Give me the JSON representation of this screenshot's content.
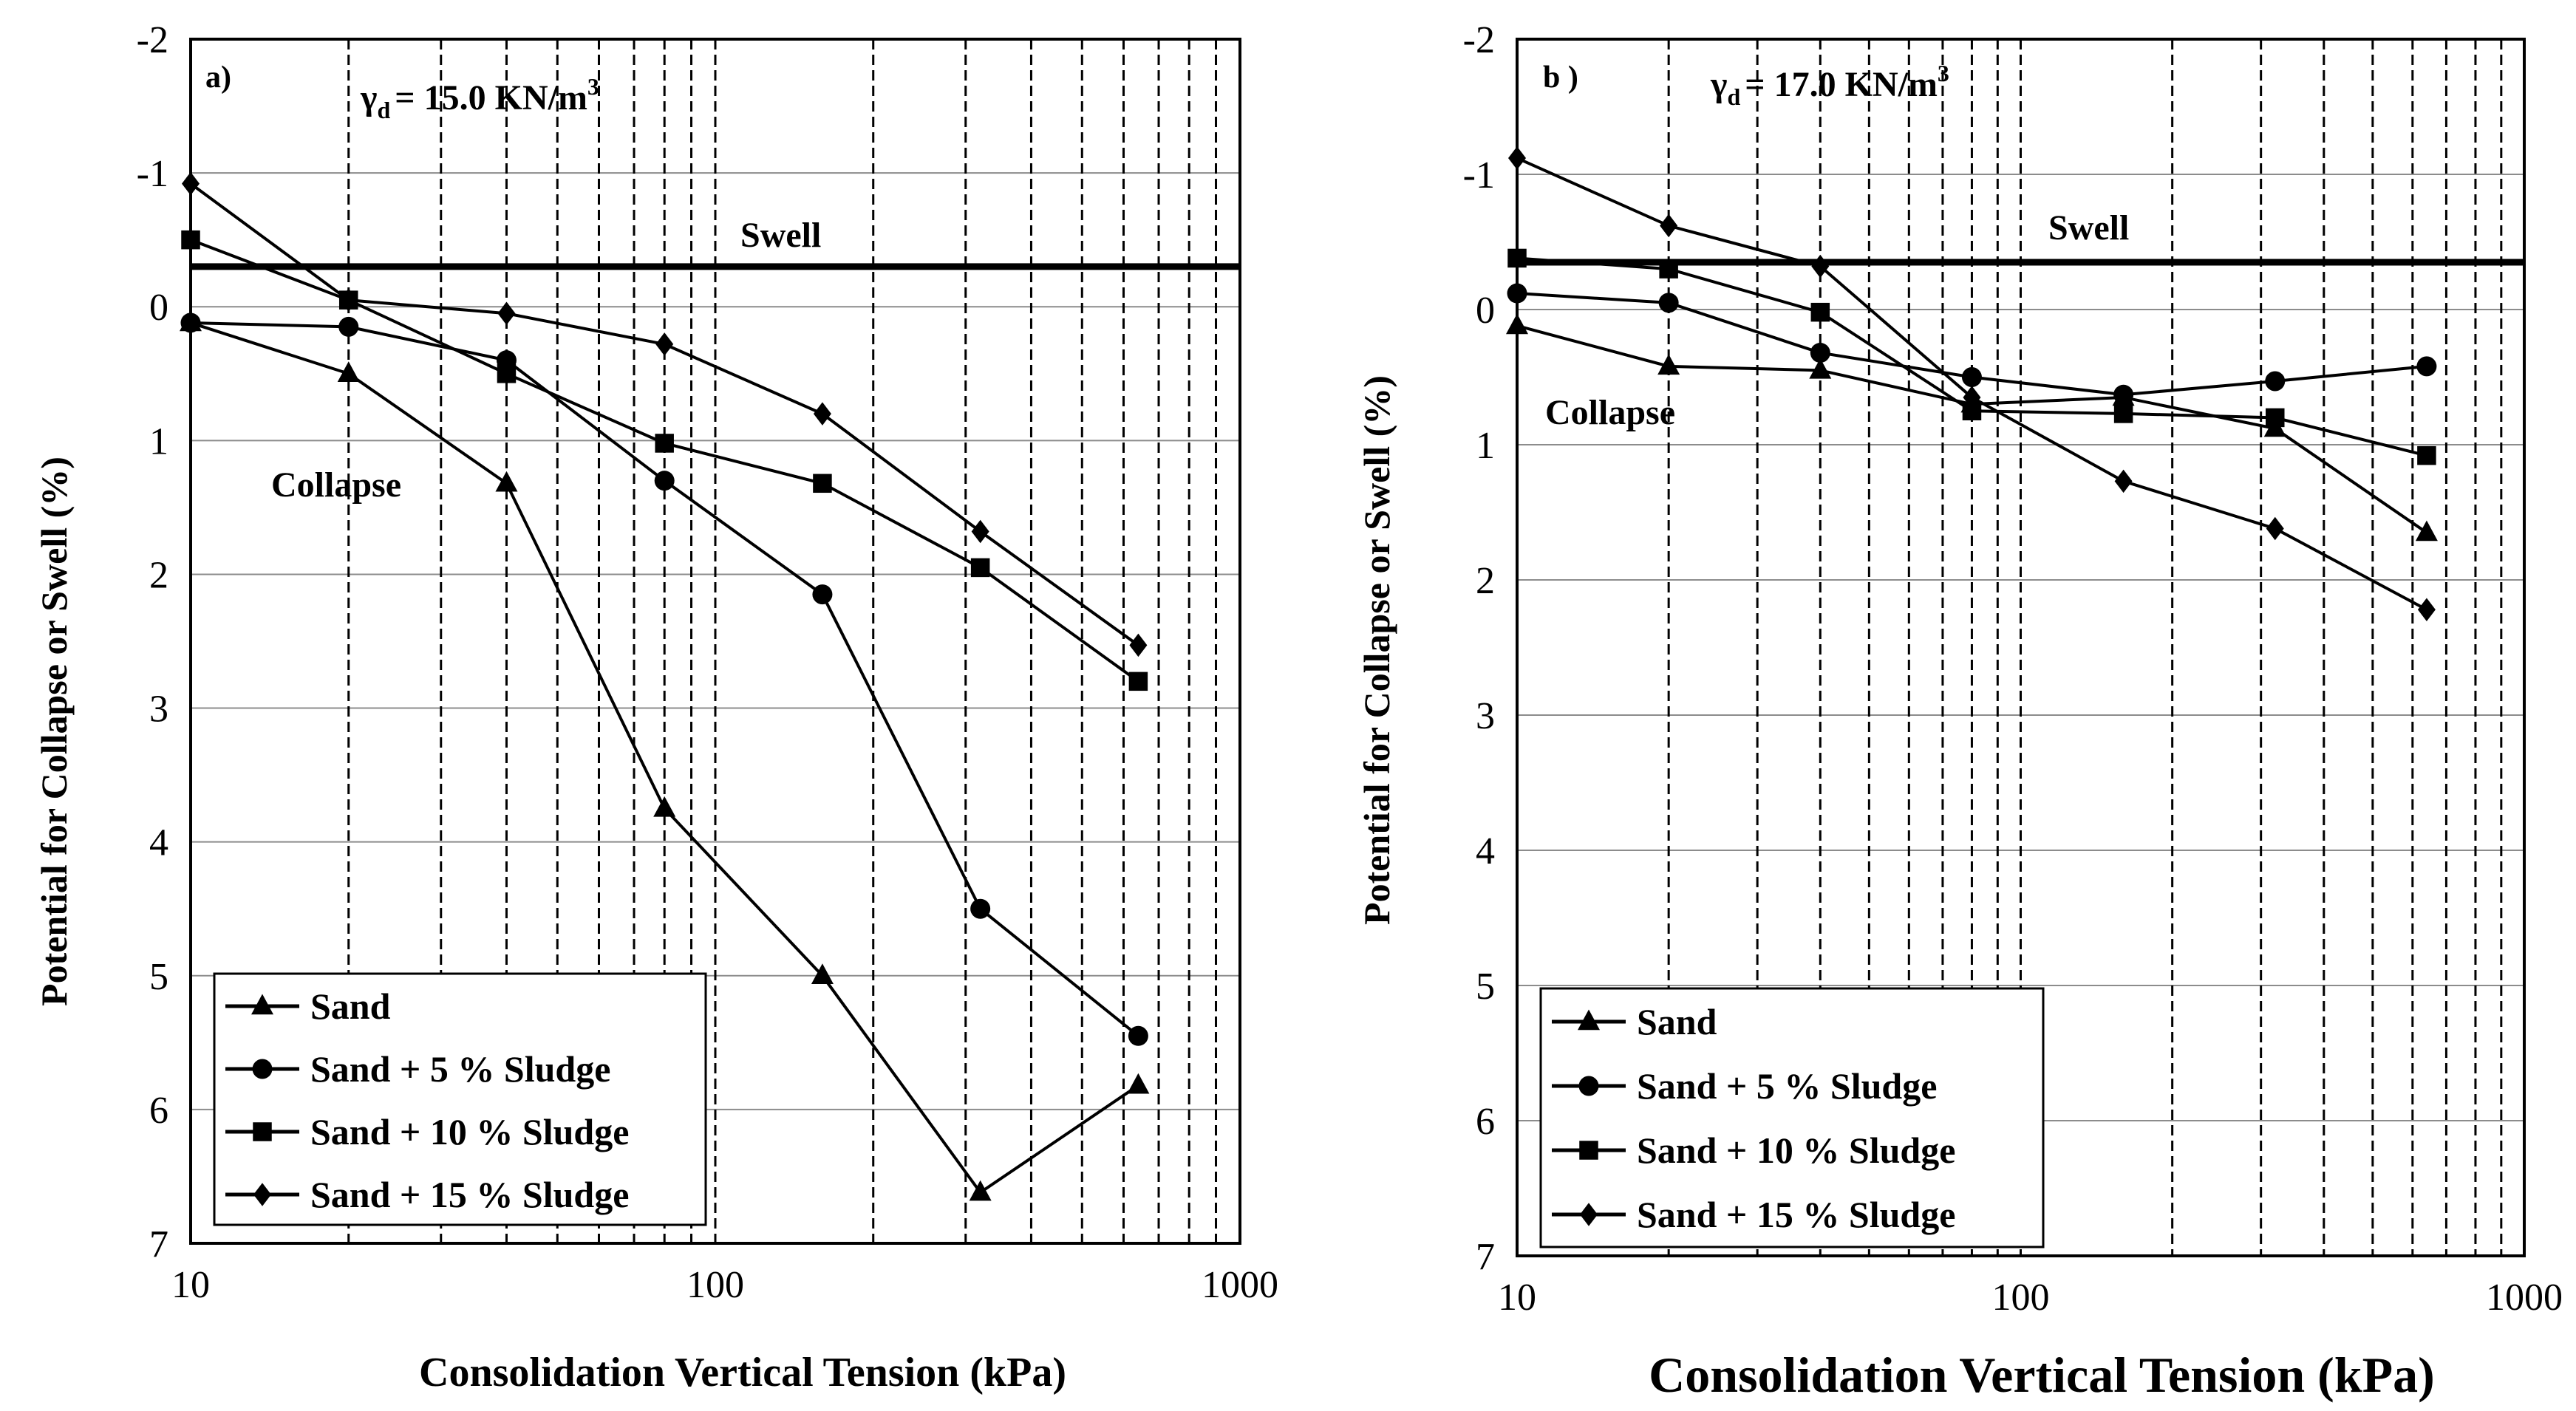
{
  "chart_data": [
    {
      "type": "line",
      "panel_label": "a)",
      "title_symbol": "γ",
      "title_subscript": "d",
      "title_value": "= 15.0 KN/m",
      "title_superscript": "3",
      "xlabel": "Consolidation Vertical Tension (kPa)",
      "ylabel": "Potential for Collapse or Swell (%)",
      "xscale": "log",
      "xlim": [
        10,
        1000
      ],
      "ylim": [
        -2,
        7
      ],
      "y_inverted": true,
      "x_ticks": [
        "10",
        "100",
        "1000"
      ],
      "y_ticks": [
        "-2",
        "-1",
        "0",
        "1",
        "2",
        "3",
        "4",
        "5",
        "6",
        "7"
      ],
      "swell_label": "Swell",
      "swell_level": -0.3,
      "collapse_label": "Collapse",
      "legend_position": "bottom-left",
      "series": [
        {
          "name": "Sand",
          "marker": "triangle",
          "x": [
            10,
            20,
            40,
            80,
            160,
            320,
            640
          ],
          "values": [
            0.12,
            0.5,
            1.32,
            3.75,
            5.0,
            6.62,
            5.82
          ]
        },
        {
          "name": "Sand +  5 %  Sludge",
          "marker": "circle",
          "x": [
            10,
            20,
            40,
            80,
            160,
            320,
            640
          ],
          "values": [
            0.12,
            0.15,
            0.4,
            1.3,
            2.15,
            4.5,
            5.45
          ]
        },
        {
          "name": "Sand + 10 % Sludge",
          "marker": "square",
          "x": [
            10,
            20,
            40,
            80,
            160,
            320,
            640
          ],
          "values": [
            -0.5,
            -0.05,
            0.5,
            1.02,
            1.32,
            1.95,
            2.8
          ]
        },
        {
          "name": "Sand + 15 % Sludge",
          "marker": "diamond",
          "x": [
            10,
            20,
            40,
            80,
            160,
            320,
            640
          ],
          "values": [
            -0.92,
            -0.05,
            0.05,
            0.28,
            0.8,
            1.68,
            2.53
          ]
        }
      ]
    },
    {
      "type": "line",
      "panel_label": "b )",
      "title_symbol": "γ",
      "title_subscript": "d",
      "title_value": "= 17.0 KN/m",
      "title_superscript": "3",
      "xlabel": "Consolidation Vertical Tension (kPa)",
      "ylabel": "Potential for Collapse or Swell (%)",
      "xscale": "log",
      "xlim": [
        10,
        1000
      ],
      "ylim": [
        -2,
        7
      ],
      "y_inverted": true,
      "x_ticks": [
        "10",
        "100",
        "1000"
      ],
      "y_ticks": [
        "-2",
        "-1",
        "0",
        "1",
        "2",
        "3",
        "4",
        "5",
        "6",
        "7"
      ],
      "swell_label": "Swell",
      "swell_level": -0.35,
      "collapse_label": "Collapse",
      "legend_position": "bottom-left",
      "series": [
        {
          "name": "Sand",
          "marker": "triangle",
          "x": [
            10,
            20,
            40,
            80,
            160,
            320,
            640
          ],
          "values": [
            0.12,
            0.42,
            0.45,
            0.7,
            0.65,
            0.88,
            1.65
          ]
        },
        {
          "name": "Sand +  5 % Sludge",
          "marker": "circle",
          "x": [
            10,
            20,
            40,
            80,
            160,
            320,
            640
          ],
          "values": [
            -0.12,
            -0.05,
            0.32,
            0.5,
            0.63,
            0.53,
            0.42
          ]
        },
        {
          "name": "Sand + 10 % Sludge",
          "marker": "square",
          "x": [
            10,
            20,
            40,
            80,
            160,
            320,
            640
          ],
          "values": [
            -0.38,
            -0.3,
            0.02,
            0.75,
            0.77,
            0.8,
            1.08
          ]
        },
        {
          "name": "Sand + 15 % Sludge",
          "marker": "diamond",
          "x": [
            10,
            20,
            40,
            80,
            160,
            320,
            640
          ],
          "values": [
            -1.12,
            -0.62,
            -0.32,
            0.65,
            1.27,
            1.62,
            2.22
          ]
        }
      ]
    }
  ]
}
